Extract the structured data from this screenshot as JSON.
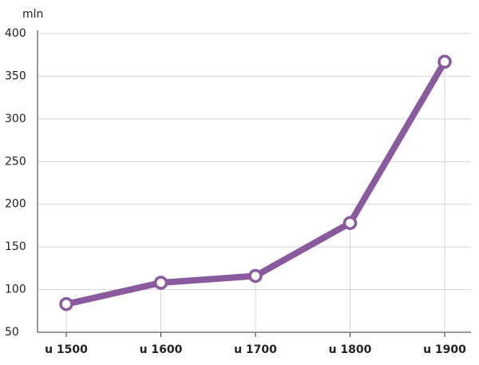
{
  "chart_data": {
    "type": "line",
    "y_label": "mln",
    "categories": [
      "u 1500",
      "u 1600",
      "u 1700",
      "u 1800",
      "u 1900"
    ],
    "values": [
      83,
      108,
      116,
      178,
      367
    ],
    "color": "#8a5a9e",
    "ylim": [
      50,
      400
    ],
    "yticks": [
      50,
      100,
      150,
      200,
      250,
      300,
      350,
      400
    ],
    "grid": true
  }
}
